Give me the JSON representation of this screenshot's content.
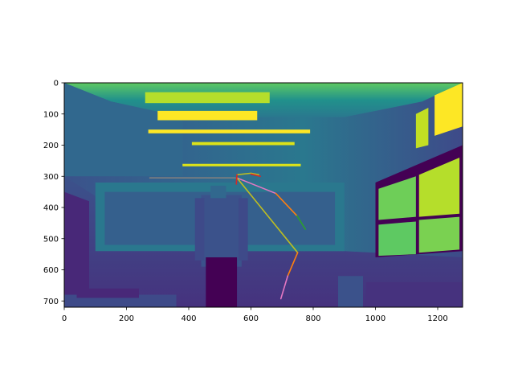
{
  "chart_data": {
    "type": "image",
    "title": "",
    "xlabel": "",
    "ylabel": "",
    "xlim": [
      0,
      1280
    ],
    "ylim": [
      720,
      0
    ],
    "x_ticks": [
      0,
      200,
      400,
      600,
      800,
      1000,
      1200
    ],
    "y_ticks": [
      0,
      100,
      200,
      300,
      400,
      500,
      600,
      700
    ],
    "colormap": "viridis",
    "image_description": "Grayscale camera frame rendered with viridis colormap: a person standing in a room with ceiling lights and windows on the right.",
    "pose_lines": [
      {
        "color": "#7f7f7f",
        "points": [
          [
            275,
            305
          ],
          [
            550,
            305
          ]
        ]
      },
      {
        "color": "#bcbd22",
        "points": [
          [
            555,
            295
          ],
          [
            600,
            290
          ],
          [
            625,
            295
          ]
        ]
      },
      {
        "color": "#d62728",
        "points": [
          [
            600,
            293
          ],
          [
            630,
            300
          ]
        ]
      },
      {
        "color": "#e377c2",
        "points": [
          [
            555,
            305
          ],
          [
            680,
            355
          ]
        ]
      },
      {
        "color": "#ff7f0e",
        "points": [
          [
            680,
            355
          ],
          [
            748,
            427
          ]
        ]
      },
      {
        "color": "#2ca02c",
        "points": [
          [
            748,
            427
          ],
          [
            775,
            470
          ]
        ]
      },
      {
        "color": "#bcbd22",
        "points": [
          [
            555,
            305
          ],
          [
            750,
            545
          ]
        ]
      },
      {
        "color": "#ff7f0e",
        "points": [
          [
            750,
            545
          ],
          [
            718,
            620
          ]
        ]
      },
      {
        "color": "#e377c2",
        "points": [
          [
            718,
            620
          ],
          [
            696,
            693
          ]
        ]
      },
      {
        "color": "#d62728",
        "points": [
          [
            555,
            295
          ],
          [
            553,
            325
          ]
        ]
      }
    ]
  }
}
